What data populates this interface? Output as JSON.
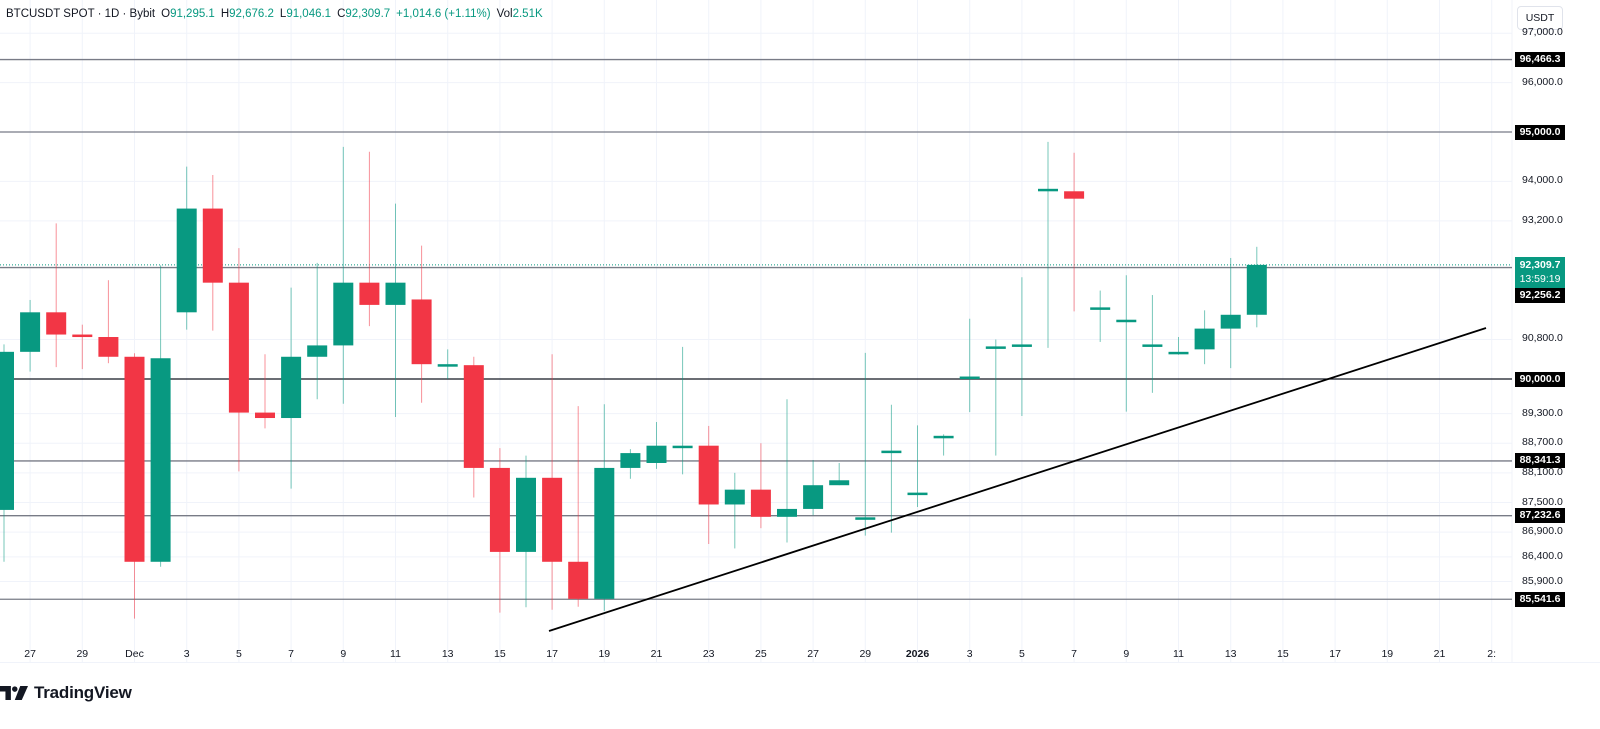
{
  "header": {
    "symbol": "BTCUSDT SPOT · 1D · Bybit",
    "open_label": "O",
    "open": "91,295.1",
    "high_label": "H",
    "high": "92,676.2",
    "low_label": "L",
    "low": "91,046.1",
    "close_label": "C",
    "close": "92,309.7",
    "change": "+1,014.6 (+1.11%)",
    "vol_label": "Vol",
    "vol": "2.51K"
  },
  "price_scale": {
    "currency": "USDT",
    "ticks": [
      "97,000.0",
      "96,000.0",
      "94,000.0",
      "93,200.0",
      "90,800.0",
      "89,300.0",
      "88,700.0",
      "88,100.0",
      "87,500.0",
      "86,900.0",
      "86,400.0",
      "85,900.0"
    ],
    "current_price": "92,309.7",
    "countdown": "13:59:19"
  },
  "horizontal_levels": [
    "96,466.3",
    "95,000.0",
    "92,256.2",
    "90,000.0",
    "88,341.3",
    "87,232.6",
    "85,541.6"
  ],
  "time_scale": {
    "ticks": [
      "27",
      "29",
      "Dec",
      "3",
      "5",
      "7",
      "9",
      "11",
      "13",
      "15",
      "17",
      "19",
      "21",
      "23",
      "25",
      "27",
      "29",
      "2026",
      "3",
      "5",
      "7",
      "9",
      "11",
      "13",
      "15",
      "17",
      "19",
      "21",
      "2:"
    ]
  },
  "footer": {
    "brand": "TradingView"
  },
  "colors": {
    "up": "#089981",
    "down": "#f23645",
    "level": "#787b86",
    "trendline": "#000000",
    "grid": "#f0f3fa"
  },
  "chart_data": {
    "type": "candlestick",
    "title": "BTCUSDT SPOT · 1D · Bybit",
    "xlabel": "",
    "ylabel": "USDT",
    "ylim": [
      85000,
      97500
    ],
    "grid": true,
    "x": [
      "Nov 26",
      "Nov 27",
      "Nov 28",
      "Nov 29",
      "Nov 30",
      "Dec 1",
      "Dec 2",
      "Dec 3",
      "Dec 4",
      "Dec 5",
      "Dec 6",
      "Dec 7",
      "Dec 8",
      "Dec 9",
      "Dec 10",
      "Dec 11",
      "Dec 12",
      "Dec 13",
      "Dec 14",
      "Dec 15",
      "Dec 16",
      "Dec 17",
      "Dec 18",
      "Dec 19",
      "Dec 20",
      "Dec 21",
      "Dec 22",
      "Dec 23",
      "Dec 24",
      "Dec 25",
      "Dec 26",
      "Dec 27",
      "Dec 28",
      "Dec 29",
      "Dec 30",
      "Dec 31",
      "Jan 1",
      "Jan 2",
      "Jan 3",
      "Jan 4",
      "Jan 5",
      "Jan 6",
      "Jan 7",
      "Jan 8",
      "Jan 9",
      "Jan 10",
      "Jan 11",
      "Jan 12",
      "Jan 13"
    ],
    "open": [
      87350,
      90550,
      91350,
      90900,
      90850,
      90450,
      86300,
      91350,
      93450,
      91950,
      89320,
      89210,
      90450,
      90680,
      91950,
      91500,
      91610,
      90300,
      90280,
      88200,
      86500,
      88000,
      86300,
      85550,
      88200,
      88300,
      88650,
      88650,
      87460,
      87760,
      87210,
      87370,
      87850,
      87200,
      88550,
      87700,
      88850,
      90050,
      90660,
      90700,
      93850,
      93800,
      91450,
      91200,
      90700,
      90550,
      90600,
      91020,
      91300
    ],
    "high": [
      90700,
      91600,
      93150,
      91100,
      92000,
      90520,
      92300,
      94300,
      94130,
      92650,
      90500,
      91850,
      92350,
      94700,
      94600,
      93550,
      92700,
      90600,
      90450,
      88600,
      88450,
      90500,
      89450,
      89490,
      88580,
      89130,
      90650,
      89050,
      88100,
      88700,
      89590,
      88360,
      88300,
      90530,
      89480,
      89060,
      88880,
      91220,
      90800,
      92060,
      94800,
      94580,
      91790,
      92100,
      91700,
      90850,
      91390,
      92450,
      92676
    ],
    "low": [
      86300,
      90150,
      90240,
      90200,
      90320,
      85150,
      86200,
      91000,
      90980,
      88130,
      89000,
      87780,
      89590,
      89500,
      91070,
      89230,
      89520,
      90000,
      87600,
      85270,
      85380,
      85330,
      85390,
      85300,
      87980,
      88180,
      88070,
      86660,
      86570,
      86980,
      86690,
      87240,
      87850,
      86830,
      86890,
      87410,
      88450,
      89330,
      88450,
      89250,
      90630,
      91370,
      90750,
      89340,
      89720,
      90490,
      90300,
      90220,
      91046
    ],
    "close": [
      90550,
      91350,
      90900,
      90850,
      90450,
      86300,
      90420,
      93450,
      91950,
      89320,
      89210,
      90450,
      90680,
      91950,
      91500,
      91950,
      90300,
      90300,
      88200,
      86500,
      88000,
      86300,
      85550,
      88200,
      88500,
      88650,
      88650,
      87460,
      87760,
      87210,
      87370,
      87850,
      87950,
      87200,
      88550,
      87700,
      88850,
      90050,
      90660,
      90700,
      93850,
      93650,
      91450,
      91200,
      90700,
      90550,
      91020,
      91300,
      92310
    ]
  }
}
